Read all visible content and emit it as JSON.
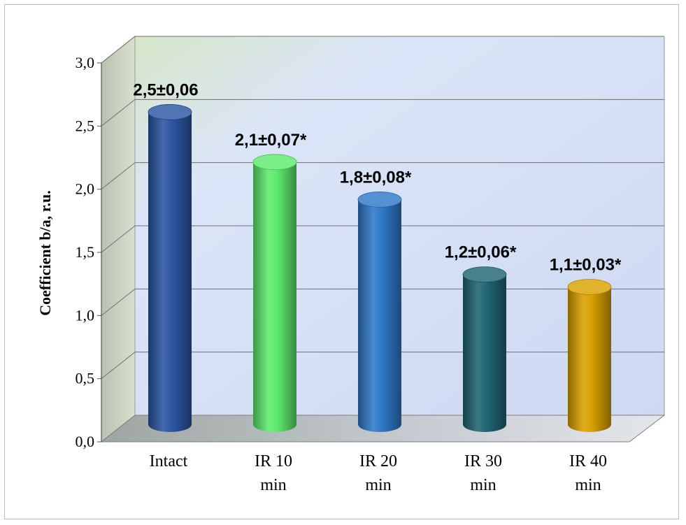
{
  "chart_data": {
    "type": "bar",
    "style": "3d-cylinder",
    "categories": [
      "Intact",
      "IR 10 min",
      "IR 20 min",
      "IR 30 min",
      "IR 40 min"
    ],
    "category_lines": [
      [
        "Intact"
      ],
      [
        "IR 10",
        "min"
      ],
      [
        "IR 20",
        "min"
      ],
      [
        "IR 30",
        "min"
      ],
      [
        "IR 40",
        "min"
      ]
    ],
    "values": [
      2.5,
      2.1,
      1.8,
      1.2,
      1.1
    ],
    "data_labels": [
      "2,5±0,06",
      "2,1±0,07*",
      "1,8±0,08*",
      "1,2±0,06*",
      "1,1±0,03*"
    ],
    "colors": [
      "#2b56a3",
      "#5eea6e",
      "#2f79c9",
      "#1f6672",
      "#d9a100"
    ],
    "ylabel": "Coefficient b/a,  r.u.",
    "xlabel": "",
    "title": "",
    "ylim": [
      0,
      3.0
    ],
    "yticks": [
      "0,0",
      "0,5",
      "1,0",
      "1,5",
      "2,0",
      "2,5",
      "3,0"
    ],
    "grid": true,
    "legend": "none",
    "wall_color": "#d9e3f7",
    "floor_color": "#c9cfd6"
  }
}
